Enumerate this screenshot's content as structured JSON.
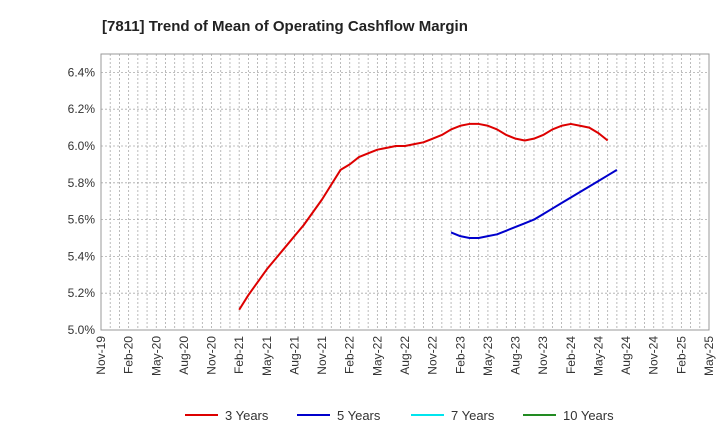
{
  "chart_data": {
    "type": "line",
    "title": "[7811]  Trend of Mean of Operating Cashflow Margin",
    "xlabel": "",
    "ylabel": "",
    "y_unit": "%",
    "ylim": [
      5.0,
      6.5
    ],
    "yticks": [
      "5.0%",
      "5.2%",
      "5.4%",
      "5.6%",
      "5.8%",
      "6.0%",
      "6.2%",
      "6.4%"
    ],
    "yticks_values": [
      5.0,
      5.2,
      5.4,
      5.6,
      5.8,
      6.0,
      6.2,
      6.4
    ],
    "x_categories": [
      "Nov-19",
      "Feb-20",
      "May-20",
      "Aug-20",
      "Nov-20",
      "Feb-21",
      "May-21",
      "Aug-21",
      "Nov-21",
      "Feb-22",
      "May-22",
      "Aug-22",
      "Nov-22",
      "Feb-23",
      "May-23",
      "Aug-23",
      "Nov-23",
      "Feb-24",
      "May-24",
      "Aug-24",
      "Nov-24",
      "Feb-25",
      "May-25"
    ],
    "grid": true,
    "legend_position": "bottom",
    "series": [
      {
        "name": "3 Years",
        "color": "#dd0000",
        "points": [
          [
            "Feb-21",
            5.11
          ],
          [
            "Mar-21",
            5.19
          ],
          [
            "Apr-21",
            5.26
          ],
          [
            "May-21",
            5.33
          ],
          [
            "Jun-21",
            5.39
          ],
          [
            "Jul-21",
            5.45
          ],
          [
            "Aug-21",
            5.51
          ],
          [
            "Sep-21",
            5.57
          ],
          [
            "Oct-21",
            5.64
          ],
          [
            "Nov-21",
            5.71
          ],
          [
            "Dec-21",
            5.79
          ],
          [
            "Jan-22",
            5.87
          ],
          [
            "Feb-22",
            5.9
          ],
          [
            "Mar-22",
            5.94
          ],
          [
            "Apr-22",
            5.96
          ],
          [
            "May-22",
            5.98
          ],
          [
            "Jun-22",
            5.99
          ],
          [
            "Jul-22",
            6.0
          ],
          [
            "Aug-22",
            6.0
          ],
          [
            "Sep-22",
            6.01
          ],
          [
            "Oct-22",
            6.02
          ],
          [
            "Nov-22",
            6.04
          ],
          [
            "Dec-22",
            6.06
          ],
          [
            "Jan-23",
            6.09
          ],
          [
            "Feb-23",
            6.11
          ],
          [
            "Mar-23",
            6.12
          ],
          [
            "Apr-23",
            6.12
          ],
          [
            "May-23",
            6.11
          ],
          [
            "Jun-23",
            6.09
          ],
          [
            "Jul-23",
            6.06
          ],
          [
            "Aug-23",
            6.04
          ],
          [
            "Sep-23",
            6.03
          ],
          [
            "Oct-23",
            6.04
          ],
          [
            "Nov-23",
            6.06
          ],
          [
            "Dec-23",
            6.09
          ],
          [
            "Jan-24",
            6.11
          ],
          [
            "Feb-24",
            6.12
          ],
          [
            "Mar-24",
            6.11
          ],
          [
            "Apr-24",
            6.1
          ],
          [
            "May-24",
            6.07
          ],
          [
            "Jun-24",
            6.03
          ]
        ]
      },
      {
        "name": "5 Years",
        "color": "#0000cc",
        "points": [
          [
            "Jan-23",
            5.53
          ],
          [
            "Feb-23",
            5.51
          ],
          [
            "Mar-23",
            5.5
          ],
          [
            "Apr-23",
            5.5
          ],
          [
            "May-23",
            5.51
          ],
          [
            "Jun-23",
            5.52
          ],
          [
            "Jul-23",
            5.54
          ],
          [
            "Aug-23",
            5.56
          ],
          [
            "Sep-23",
            5.58
          ],
          [
            "Oct-23",
            5.6
          ],
          [
            "Nov-23",
            5.63
          ],
          [
            "Dec-23",
            5.66
          ],
          [
            "Jan-24",
            5.69
          ],
          [
            "Feb-24",
            5.72
          ],
          [
            "Mar-24",
            5.75
          ],
          [
            "Apr-24",
            5.78
          ],
          [
            "May-24",
            5.81
          ],
          [
            "Jun-24",
            5.84
          ],
          [
            "Jul-24",
            5.87
          ]
        ]
      },
      {
        "name": "7 Years",
        "color": "#00e5ee",
        "points": []
      },
      {
        "name": "10 Years",
        "color": "#228b22",
        "points": []
      }
    ]
  }
}
